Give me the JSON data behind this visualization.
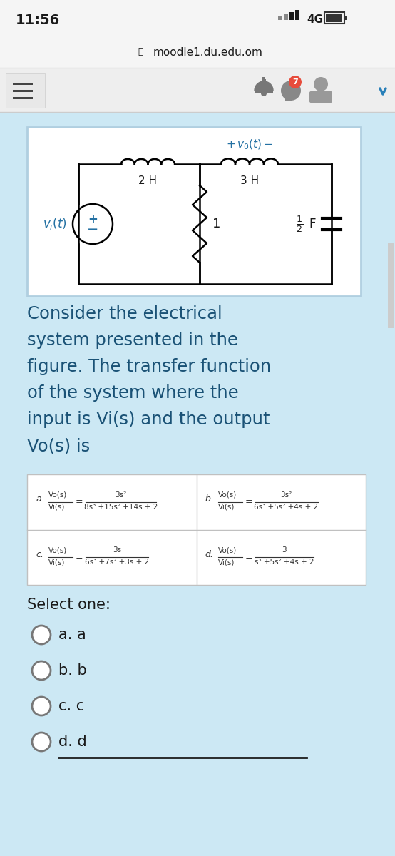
{
  "time": "11:56",
  "url": "moodle1.du.edu.om",
  "bg_statusbar": "#f5f5f5",
  "bg_urlbar": "#f5f5f5",
  "bg_navbar": "#eeeeee",
  "bg_content": "#cce8f4",
  "bg_circuit": "#ffffff",
  "bg_options": "#ffffff",
  "text_dark": "#1a1a1a",
  "text_blue": "#2471a3",
  "text_gray": "#666666",
  "question_text_color": "#1a5276",
  "question_lines": [
    "Consider the electrical",
    "system presented in the",
    "figure. The transfer function",
    "of the system where the",
    "input is Vi(s) and the output",
    "Vo(s) is"
  ],
  "select_label": "Select one:",
  "choices": [
    "a. a",
    "b. b",
    "c. c",
    "d. d"
  ],
  "opt_a_label": "a.",
  "opt_a_frac": "Vo(s)",
  "opt_a_denom_label": "Vi(s)",
  "opt_a_num": "3s²",
  "opt_a_den": "8s³ +15s² +14s + 2",
  "opt_b_label": "b.",
  "opt_b_num": "3s²",
  "opt_b_den": "6s³ +5s² +4s + 2",
  "opt_c_label": "c.",
  "opt_c_num": "3s",
  "opt_c_den": "6s³ +7s² +3s + 2",
  "opt_d_label": "d.",
  "opt_d_num": "3",
  "opt_d_den": "s³ +5s² +4s + 2"
}
